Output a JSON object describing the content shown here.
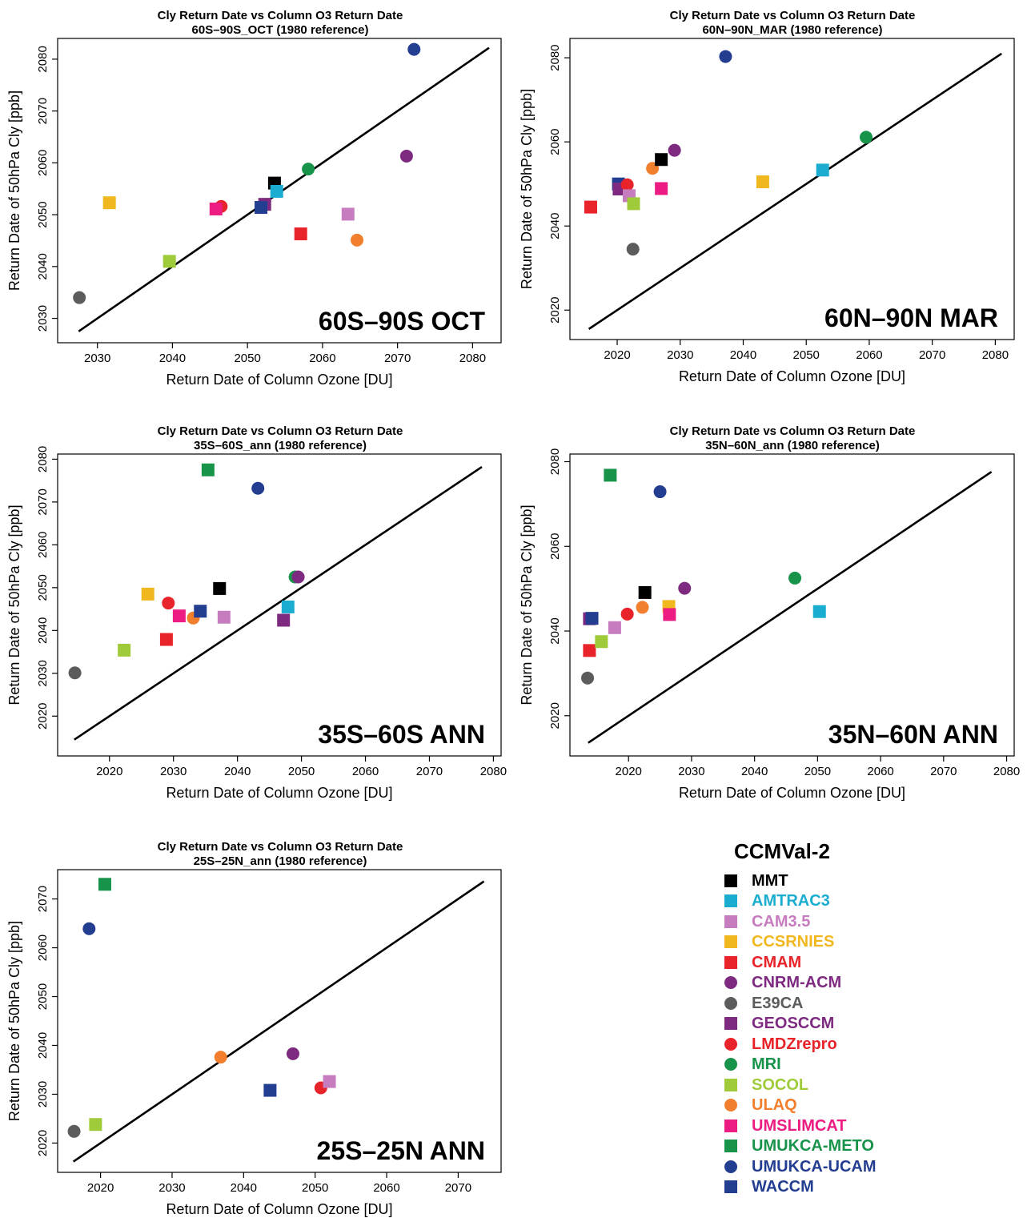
{
  "legend": {
    "title": "CCMVal-2",
    "models": [
      {
        "name": "MMT",
        "color": "#000000",
        "shape": "square"
      },
      {
        "name": "AMTRAC3",
        "color": "#1AADCF",
        "shape": "square"
      },
      {
        "name": "CAM3.5",
        "color": "#C77CBF",
        "shape": "square"
      },
      {
        "name": "CCSRNIES",
        "color": "#F0B81E",
        "shape": "square"
      },
      {
        "name": "CMAM",
        "color": "#E8232A",
        "shape": "square"
      },
      {
        "name": "CNRM-ACM",
        "color": "#7D2A80",
        "shape": "circle"
      },
      {
        "name": "E39CA",
        "color": "#5C5C5C",
        "shape": "circle"
      },
      {
        "name": "GEOSCCM",
        "color": "#7D2A80",
        "shape": "square"
      },
      {
        "name": "LMDZrepro",
        "color": "#E8232A",
        "shape": "circle"
      },
      {
        "name": "MRI",
        "color": "#17934A",
        "shape": "circle"
      },
      {
        "name": "SOCOL",
        "color": "#9FCB3B",
        "shape": "square"
      },
      {
        "name": "ULAQ",
        "color": "#F27F2D",
        "shape": "circle"
      },
      {
        "name": "UMSLIMCAT",
        "color": "#EC1C83",
        "shape": "square"
      },
      {
        "name": "UMUKCA-METO",
        "color": "#17934A",
        "shape": "square"
      },
      {
        "name": "UMUKCA-UCAM",
        "color": "#233E90",
        "shape": "circle"
      },
      {
        "name": "WACCM",
        "color": "#233E90",
        "shape": "square"
      }
    ]
  },
  "chart_data": [
    {
      "type": "scatter",
      "title": "Cly Return Date vs Column O3 Return Date",
      "subtitle": "60S–90S_OCT  (1980 reference)",
      "region_label": "60S–90S OCT",
      "xlabel": "Return Date of Column Ozone [DU]",
      "ylabel": "Return Date of 50hPa Cly [ppb]",
      "xlim": [
        2024.7,
        2083.8
      ],
      "ylim": [
        2025.3,
        2084.0
      ],
      "xticks": [
        2030,
        2040,
        2050,
        2060,
        2070,
        2080
      ],
      "yticks": [
        2030,
        2040,
        2050,
        2060,
        2070,
        2080
      ],
      "one_to_one_line": [
        2027.5,
        2082.2
      ],
      "points": [
        {
          "model": "E39CA",
          "x": 2027.6,
          "y": 2034.0
        },
        {
          "model": "CCSRNIES",
          "x": 2031.6,
          "y": 2052.3
        },
        {
          "model": "SOCOL",
          "x": 2039.6,
          "y": 2041.0
        },
        {
          "model": "LMDZrepro",
          "x": 2046.5,
          "y": 2051.6
        },
        {
          "model": "UMSLIMCAT",
          "x": 2045.8,
          "y": 2051.1
        },
        {
          "model": "GEOSCCM",
          "x": 2052.3,
          "y": 2052.0
        },
        {
          "model": "WACCM",
          "x": 2051.8,
          "y": 2051.4
        },
        {
          "model": "MMT",
          "x": 2053.6,
          "y": 2056.1
        },
        {
          "model": "AMTRAC3",
          "x": 2053.9,
          "y": 2054.5
        },
        {
          "model": "MRI",
          "x": 2058.1,
          "y": 2058.8
        },
        {
          "model": "CMAM",
          "x": 2057.1,
          "y": 2046.3
        },
        {
          "model": "CAM3.5",
          "x": 2063.4,
          "y": 2050.1
        },
        {
          "model": "ULAQ",
          "x": 2064.6,
          "y": 2045.1
        },
        {
          "model": "CNRM-ACM",
          "x": 2071.2,
          "y": 2061.3
        },
        {
          "model": "UMUKCA-UCAM",
          "x": 2072.2,
          "y": 2081.9
        }
      ]
    },
    {
      "type": "scatter",
      "title": "Cly Return Date vs Column O3 Return Date",
      "subtitle": "60N–90N_MAR  (1980 reference)",
      "region_label": "60N–90N MAR",
      "xlabel": "Return Date of Column Ozone [DU]",
      "ylabel": "Return Date of 50hPa Cly [ppb]",
      "xlim": [
        2012.5,
        2083.0
      ],
      "ylim": [
        2013.0,
        2084.6
      ],
      "xticks": [
        2020,
        2030,
        2040,
        2050,
        2060,
        2070,
        2080
      ],
      "yticks": [
        2020,
        2040,
        2060,
        2080
      ],
      "one_to_one_line": [
        2015.5,
        2081.0
      ],
      "points": [
        {
          "model": "CMAM",
          "x": 2015.8,
          "y": 2044.5
        },
        {
          "model": "WACCM",
          "x": 2020.2,
          "y": 2050.0
        },
        {
          "model": "GEOSCCM",
          "x": 2020.3,
          "y": 2048.8
        },
        {
          "model": "LMDZrepro",
          "x": 2021.6,
          "y": 2049.8
        },
        {
          "model": "CAM3.5",
          "x": 2021.9,
          "y": 2047.2
        },
        {
          "model": "SOCOL",
          "x": 2022.6,
          "y": 2045.3
        },
        {
          "model": "E39CA",
          "x": 2022.5,
          "y": 2034.5
        },
        {
          "model": "ULAQ",
          "x": 2025.6,
          "y": 2053.7
        },
        {
          "model": "UMSLIMCAT",
          "x": 2027.0,
          "y": 2048.9
        },
        {
          "model": "MMT",
          "x": 2027.0,
          "y": 2055.8
        },
        {
          "model": "CNRM-ACM",
          "x": 2029.1,
          "y": 2058.0
        },
        {
          "model": "UMUKCA-UCAM",
          "x": 2037.2,
          "y": 2080.3
        },
        {
          "model": "CCSRNIES",
          "x": 2043.1,
          "y": 2050.5
        },
        {
          "model": "AMTRAC3",
          "x": 2052.6,
          "y": 2053.3
        },
        {
          "model": "MRI",
          "x": 2059.5,
          "y": 2061.1
        }
      ]
    },
    {
      "type": "scatter",
      "title": "Cly Return Date vs Column O3 Return Date",
      "subtitle": "35S–60S_ann  (1980 reference)",
      "region_label": "35S–60S ANN",
      "xlabel": "Return Date of Column Ozone [DU]",
      "ylabel": "Return Date of 50hPa Cly [ppb]",
      "xlim": [
        2011.9,
        2081.2
      ],
      "ylim": [
        2010.7,
        2081.2
      ],
      "xticks": [
        2020,
        2030,
        2040,
        2050,
        2060,
        2070,
        2080
      ],
      "yticks": [
        2020,
        2030,
        2040,
        2050,
        2060,
        2070,
        2080
      ],
      "one_to_one_line": [
        2014.5,
        2078.2
      ],
      "points": [
        {
          "model": "E39CA",
          "x": 2014.6,
          "y": 2030.1
        },
        {
          "model": "SOCOL",
          "x": 2022.3,
          "y": 2035.4
        },
        {
          "model": "CCSRNIES",
          "x": 2026.0,
          "y": 2048.5
        },
        {
          "model": "CMAM",
          "x": 2028.9,
          "y": 2037.9
        },
        {
          "model": "LMDZrepro",
          "x": 2029.2,
          "y": 2046.4
        },
        {
          "model": "UMSLIMCAT",
          "x": 2030.9,
          "y": 2043.4
        },
        {
          "model": "ULAQ",
          "x": 2033.1,
          "y": 2042.9
        },
        {
          "model": "WACCM",
          "x": 2034.2,
          "y": 2044.5
        },
        {
          "model": "UMUKCA-METO",
          "x": 2035.4,
          "y": 2077.5
        },
        {
          "model": "MMT",
          "x": 2037.2,
          "y": 2049.8
        },
        {
          "model": "CAM3.5",
          "x": 2037.9,
          "y": 2043.1
        },
        {
          "model": "UMUKCA-UCAM",
          "x": 2043.2,
          "y": 2073.2
        },
        {
          "model": "GEOSCCM",
          "x": 2047.2,
          "y": 2042.4
        },
        {
          "model": "AMTRAC3",
          "x": 2047.9,
          "y": 2045.5
        },
        {
          "model": "MRI",
          "x": 2049.0,
          "y": 2052.5
        },
        {
          "model": "CNRM-ACM",
          "x": 2049.5,
          "y": 2052.5
        }
      ]
    },
    {
      "type": "scatter",
      "title": "Cly Return Date vs Column O3 Return Date",
      "subtitle": "35N–60N_ann  (1980 reference)",
      "region_label": "35N–60N ANN",
      "xlabel": "Return Date of Column Ozone [DU]",
      "ylabel": "Return Date of 50hPa Cly [ppb]",
      "xlim": [
        2010.7,
        2081.2
      ],
      "ylim": [
        2010.5,
        2081.8
      ],
      "xticks": [
        2020,
        2030,
        2040,
        2050,
        2060,
        2070,
        2080
      ],
      "yticks": [
        2020,
        2040,
        2060,
        2080
      ],
      "one_to_one_line": [
        2013.6,
        2077.6
      ],
      "points": [
        {
          "model": "E39CA",
          "x": 2013.5,
          "y": 2028.9
        },
        {
          "model": "CMAM",
          "x": 2013.8,
          "y": 2035.4
        },
        {
          "model": "GEOSCCM",
          "x": 2013.8,
          "y": 2042.9
        },
        {
          "model": "WACCM",
          "x": 2014.2,
          "y": 2043.0
        },
        {
          "model": "SOCOL",
          "x": 2015.7,
          "y": 2037.5
        },
        {
          "model": "UMUKCA-METO",
          "x": 2017.1,
          "y": 2076.8
        },
        {
          "model": "CAM3.5",
          "x": 2017.8,
          "y": 2040.8
        },
        {
          "model": "LMDZrepro",
          "x": 2019.8,
          "y": 2044.0
        },
        {
          "model": "ULAQ",
          "x": 2022.2,
          "y": 2045.6
        },
        {
          "model": "MMT",
          "x": 2022.6,
          "y": 2049.1
        },
        {
          "model": "UMUKCA-UCAM",
          "x": 2025.0,
          "y": 2072.9
        },
        {
          "model": "CCSRNIES",
          "x": 2026.4,
          "y": 2045.8
        },
        {
          "model": "UMSLIMCAT",
          "x": 2026.5,
          "y": 2043.9
        },
        {
          "model": "CNRM-ACM",
          "x": 2028.9,
          "y": 2050.1
        },
        {
          "model": "MRI",
          "x": 2046.4,
          "y": 2052.5
        },
        {
          "model": "AMTRAC3",
          "x": 2050.3,
          "y": 2044.6
        }
      ]
    },
    {
      "type": "scatter",
      "title": "Cly Return Date vs Column O3 Return Date",
      "subtitle": "25S–25N_ann  (1980 reference)",
      "region_label": "25S–25N ANN",
      "xlabel": "Return Date of Column Ozone [DU]",
      "ylabel": "Return Date of 50hPa Cly [ppb]",
      "xlim": [
        2014.0,
        2076.0
      ],
      "ylim": [
        2014.0,
        2076.0
      ],
      "xticks": [
        2020,
        2030,
        2040,
        2050,
        2060,
        2070
      ],
      "yticks": [
        2020,
        2030,
        2040,
        2050,
        2060,
        2070
      ],
      "one_to_one_line": [
        2016.2,
        2073.6
      ],
      "points": [
        {
          "model": "E39CA",
          "x": 2016.3,
          "y": 2022.4
        },
        {
          "model": "UMUKCA-UCAM",
          "x": 2018.4,
          "y": 2063.9
        },
        {
          "model": "SOCOL",
          "x": 2019.3,
          "y": 2023.8
        },
        {
          "model": "UMUKCA-METO",
          "x": 2020.6,
          "y": 2073.0
        },
        {
          "model": "ULAQ",
          "x": 2036.8,
          "y": 2037.6
        },
        {
          "model": "WACCM",
          "x": 2043.7,
          "y": 2030.8
        },
        {
          "model": "CNRM-ACM",
          "x": 2046.9,
          "y": 2038.3
        },
        {
          "model": "LMDZrepro",
          "x": 2050.8,
          "y": 2031.3
        },
        {
          "model": "CAM3.5",
          "x": 2052.0,
          "y": 2032.6
        }
      ]
    }
  ]
}
